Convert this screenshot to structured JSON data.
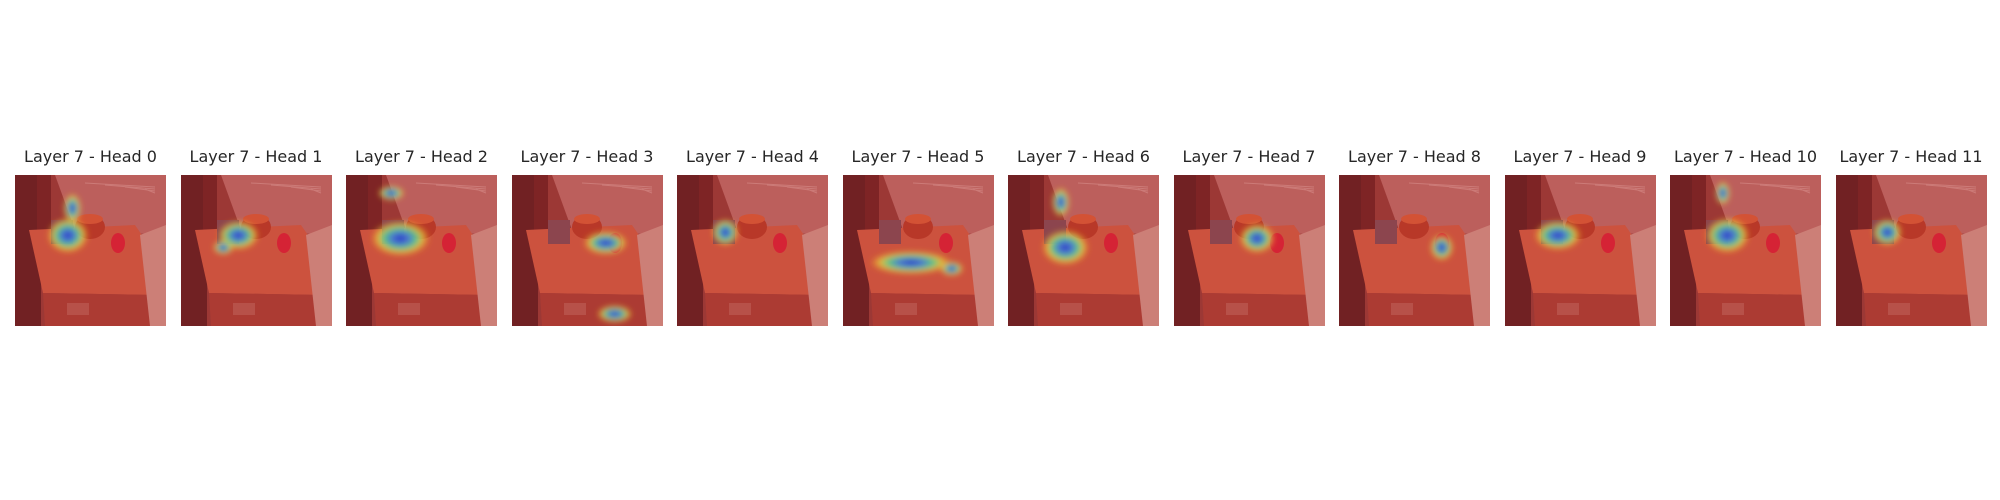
{
  "panels": [
    {
      "title": "Layer 7 - Head 0",
      "hotspots": [
        [
          0.35,
          0.4,
          0.14,
          0.12
        ],
        [
          0.38,
          0.22,
          0.06,
          0.1
        ]
      ]
    },
    {
      "title": "Layer 7 - Head 1",
      "hotspots": [
        [
          0.38,
          0.4,
          0.14,
          0.1
        ],
        [
          0.28,
          0.48,
          0.07,
          0.05
        ]
      ]
    },
    {
      "title": "Layer 7 - Head 2",
      "hotspots": [
        [
          0.36,
          0.42,
          0.2,
          0.12
        ],
        [
          0.3,
          0.12,
          0.09,
          0.05
        ]
      ]
    },
    {
      "title": "Layer 7 - Head 3",
      "hotspots": [
        [
          0.62,
          0.45,
          0.15,
          0.08
        ],
        [
          0.68,
          0.92,
          0.12,
          0.06
        ]
      ]
    },
    {
      "title": "Layer 7 - Head 4",
      "hotspots": [
        [
          0.32,
          0.38,
          0.09,
          0.09
        ]
      ]
    },
    {
      "title": "Layer 7 - Head 5",
      "hotspots": [
        [
          0.45,
          0.58,
          0.28,
          0.08
        ],
        [
          0.72,
          0.62,
          0.08,
          0.05
        ]
      ]
    },
    {
      "title": "Layer 7 - Head 6",
      "hotspots": [
        [
          0.38,
          0.48,
          0.16,
          0.12
        ],
        [
          0.35,
          0.18,
          0.06,
          0.1
        ]
      ]
    },
    {
      "title": "Layer 7 - Head 7",
      "hotspots": [
        [
          0.55,
          0.42,
          0.12,
          0.1
        ]
      ]
    },
    {
      "title": "Layer 7 - Head 8",
      "hotspots": [
        [
          0.68,
          0.48,
          0.08,
          0.09
        ]
      ]
    },
    {
      "title": "Layer 7 - Head 9",
      "hotspots": [
        [
          0.35,
          0.4,
          0.16,
          0.1
        ]
      ]
    },
    {
      "title": "Layer 7 - Head 10",
      "hotspots": [
        [
          0.38,
          0.4,
          0.15,
          0.12
        ],
        [
          0.35,
          0.12,
          0.05,
          0.08
        ]
      ]
    },
    {
      "title": "Layer 7 - Head 11",
      "hotspots": [
        [
          0.34,
          0.38,
          0.1,
          0.09
        ]
      ]
    }
  ]
}
